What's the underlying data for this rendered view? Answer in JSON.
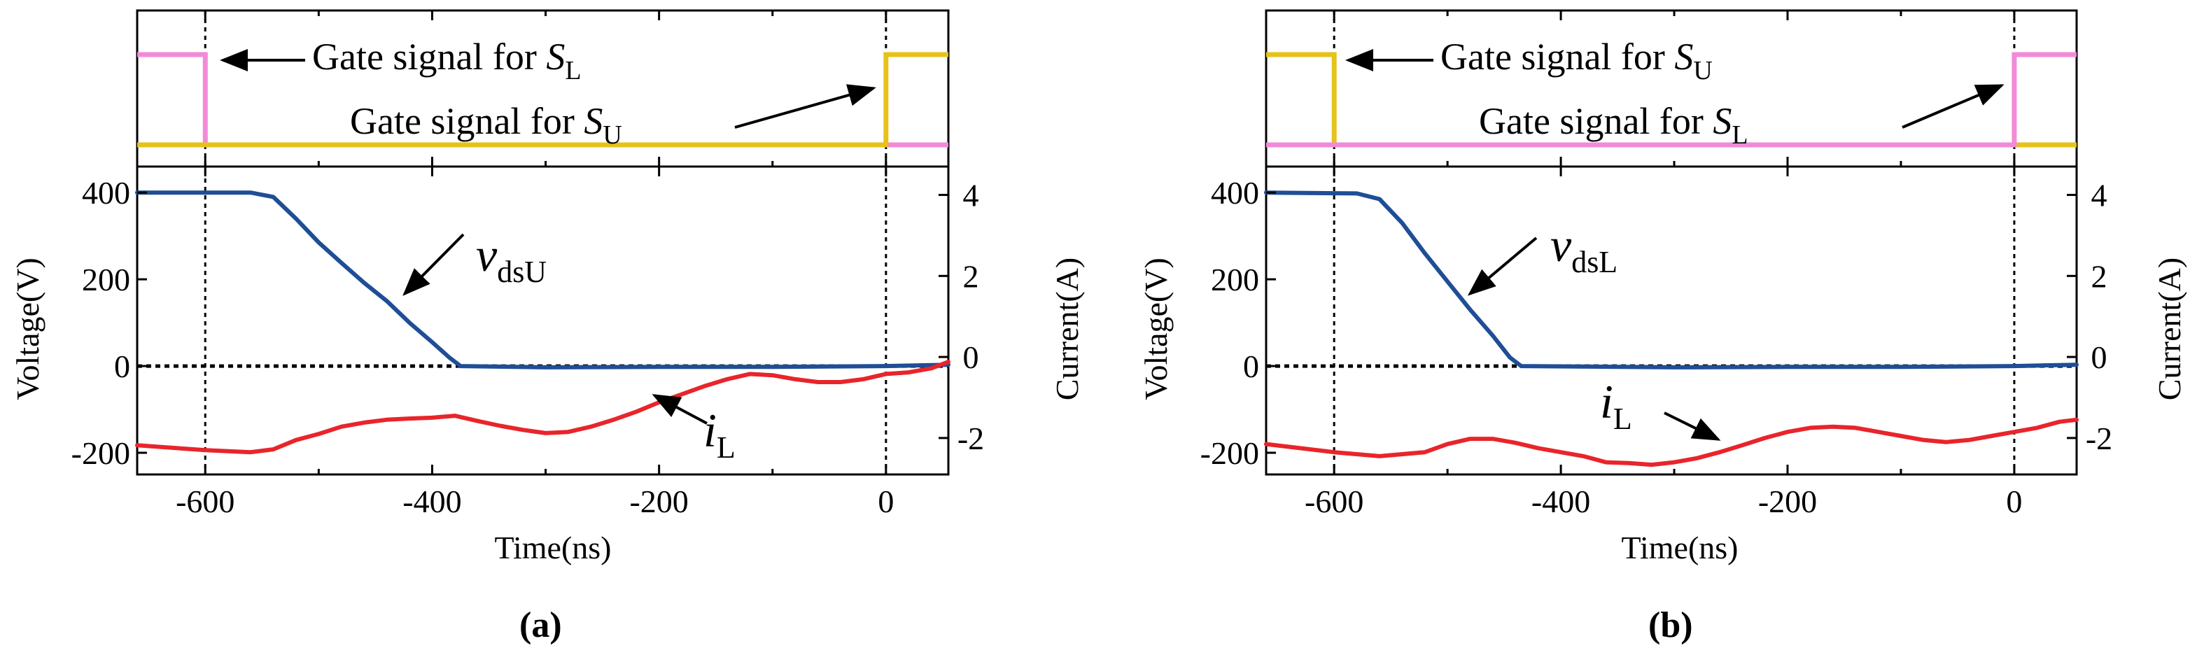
{
  "colors": {
    "vds": "#1f4e96",
    "il": "#e8252b",
    "gate_yellow": "#e6c21a",
    "gate_pink": "#f28ad8",
    "axis": "#000000"
  },
  "chart_data": [
    {
      "panel": "a",
      "type": "line",
      "caption": "(a)",
      "xlabel": "Time(ns)",
      "ylabel_left": "Voltage(V)",
      "ylabel_right": "Current(A)",
      "xlim": [
        -660,
        55
      ],
      "ylim_left": [
        -250,
        460
      ],
      "ylim_right": [
        -2.9,
        4.7
      ],
      "xticks": [
        -600,
        -400,
        -200,
        0
      ],
      "xtick_labels": [
        "-600",
        "-400",
        "-200",
        "0"
      ],
      "yticks_left": [
        -200,
        0,
        200,
        400
      ],
      "ytick_labels_left": [
        "-200",
        "0",
        "200",
        "400"
      ],
      "yticks_right": [
        -2,
        0,
        2,
        4
      ],
      "ytick_labels_right": [
        "-2",
        "0",
        "2",
        "4"
      ],
      "markers_x": [
        -600,
        0
      ],
      "gate": {
        "series": [
          {
            "name": "SL",
            "color": "pink",
            "points": [
              [
                -660,
                1
              ],
              [
                -600,
                1
              ],
              [
                -600,
                0
              ],
              [
                55,
                0
              ]
            ]
          },
          {
            "name": "SU",
            "color": "yellow",
            "points": [
              [
                -660,
                0
              ],
              [
                0,
                0
              ],
              [
                0,
                1
              ],
              [
                55,
                1
              ]
            ]
          }
        ],
        "annotation1": {
          "text": "Gate signal for ",
          "sym": "S",
          "sub": "L"
        },
        "annotation2": {
          "text": "Gate signal for ",
          "sym": "S",
          "sub": "U"
        }
      },
      "series": [
        {
          "name": "vdsU",
          "axis": "left",
          "color": "vds",
          "x": [
            -660,
            -560,
            -540,
            -520,
            -500,
            -480,
            -460,
            -440,
            -420,
            -400,
            -385,
            -375,
            -300,
            -200,
            -100,
            0,
            55
          ],
          "y": [
            400,
            400,
            390,
            340,
            285,
            238,
            192,
            150,
            100,
            55,
            20,
            0,
            -3,
            -2,
            -2,
            0,
            3
          ]
        },
        {
          "name": "iL",
          "axis": "right",
          "color": "il",
          "x": [
            -660,
            -600,
            -560,
            -540,
            -520,
            -500,
            -480,
            -460,
            -440,
            -420,
            -400,
            -380,
            -360,
            -340,
            -320,
            -300,
            -280,
            -260,
            -240,
            -220,
            -200,
            -180,
            -160,
            -140,
            -120,
            -100,
            -80,
            -60,
            -40,
            -20,
            0,
            20,
            40,
            55
          ],
          "y": [
            -2.18,
            -2.3,
            -2.35,
            -2.28,
            -2.05,
            -1.9,
            -1.72,
            -1.62,
            -1.55,
            -1.52,
            -1.5,
            -1.45,
            -1.58,
            -1.7,
            -1.8,
            -1.88,
            -1.85,
            -1.72,
            -1.55,
            -1.35,
            -1.12,
            -0.92,
            -0.72,
            -0.55,
            -0.42,
            -0.45,
            -0.55,
            -0.62,
            -0.62,
            -0.55,
            -0.42,
            -0.38,
            -0.28,
            -0.12
          ]
        }
      ],
      "labels": {
        "vds_sym": "v",
        "vds_sub": "dsU",
        "il_sym": "i",
        "il_sub": "L"
      }
    },
    {
      "panel": "b",
      "type": "line",
      "caption": "(b)",
      "xlabel": "Time(ns)",
      "ylabel_left": "Voltage(V)",
      "ylabel_right": "Current(A)",
      "xlim": [
        -660,
        55
      ],
      "ylim_left": [
        -250,
        460
      ],
      "ylim_right": [
        -2.9,
        4.7
      ],
      "xticks": [
        -600,
        -400,
        -200,
        0
      ],
      "xtick_labels": [
        "-600",
        "-400",
        "-200",
        "0"
      ],
      "yticks_left": [
        -200,
        0,
        200,
        400
      ],
      "ytick_labels_left": [
        "-200",
        "0",
        "200",
        "400"
      ],
      "yticks_right": [
        -2,
        0,
        2,
        4
      ],
      "ytick_labels_right": [
        "-2",
        "0",
        "2",
        "4"
      ],
      "markers_x": [
        -600,
        0
      ],
      "gate": {
        "series": [
          {
            "name": "SU",
            "color": "yellow",
            "points": [
              [
                -660,
                1
              ],
              [
                -600,
                1
              ],
              [
                -600,
                0
              ],
              [
                55,
                0
              ]
            ]
          },
          {
            "name": "SL",
            "color": "pink",
            "points": [
              [
                -660,
                0
              ],
              [
                0,
                0
              ],
              [
                0,
                1
              ],
              [
                55,
                1
              ]
            ]
          }
        ],
        "annotation1": {
          "text": "Gate signal for ",
          "sym": "S",
          "sub": "U"
        },
        "annotation2": {
          "text": "Gate signal for ",
          "sym": "S",
          "sub": "L"
        }
      },
      "series": [
        {
          "name": "vdsL",
          "axis": "left",
          "color": "vds",
          "x": [
            -660,
            -580,
            -560,
            -540,
            -520,
            -500,
            -480,
            -460,
            -445,
            -435,
            -300,
            -200,
            -100,
            0,
            55
          ],
          "y": [
            400,
            398,
            385,
            330,
            260,
            195,
            130,
            70,
            20,
            0,
            -3,
            -2,
            -2,
            0,
            3
          ]
        },
        {
          "name": "iL",
          "axis": "right",
          "color": "il",
          "x": [
            -660,
            -600,
            -560,
            -520,
            -500,
            -480,
            -460,
            -440,
            -420,
            -400,
            -380,
            -360,
            -340,
            -320,
            -300,
            -280,
            -260,
            -240,
            -220,
            -200,
            -180,
            -160,
            -140,
            -120,
            -100,
            -80,
            -60,
            -40,
            -20,
            0,
            20,
            40,
            55
          ],
          "y": [
            -2.15,
            -2.35,
            -2.45,
            -2.35,
            -2.15,
            -2.02,
            -2.02,
            -2.12,
            -2.25,
            -2.35,
            -2.45,
            -2.6,
            -2.62,
            -2.66,
            -2.6,
            -2.5,
            -2.35,
            -2.18,
            -2.0,
            -1.85,
            -1.75,
            -1.72,
            -1.75,
            -1.85,
            -1.95,
            -2.05,
            -2.1,
            -2.05,
            -1.95,
            -1.85,
            -1.75,
            -1.6,
            -1.55
          ]
        }
      ],
      "labels": {
        "vds_sym": "v",
        "vds_sub": "dsL",
        "il_sym": "i",
        "il_sub": "L"
      }
    }
  ]
}
